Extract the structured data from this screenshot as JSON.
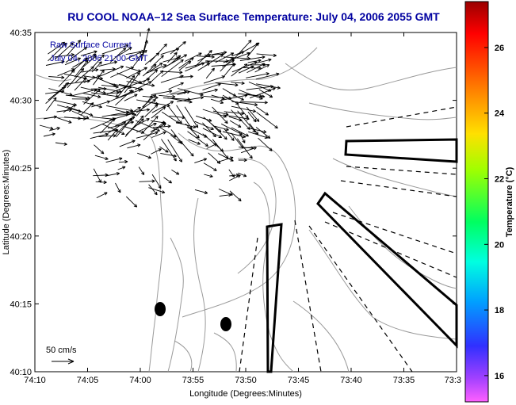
{
  "chart_data": {
    "type": "quiver-map",
    "title": "RU COOL   NOAA–12  Sea Surface Temperature:  July 04, 2006 2055 GMT",
    "xlabel": "Longitude (Degrees:Minutes)",
    "ylabel": "Latitude (Degrees:Minutes)",
    "xlim_minutes_west": [
      4450,
      4413
    ],
    "ylim_minutes_north": [
      2410,
      2435
    ],
    "x_ticks": [
      "74:10",
      "74:05",
      "74:00",
      "73:55",
      "73:50",
      "73:45",
      "73:40",
      "73:35",
      "73:3"
    ],
    "y_ticks": [
      "40:35",
      "40:30",
      "40:25",
      "40:20",
      "40:15",
      "40:10"
    ],
    "annotations": [
      "Raw Surface Current",
      "July 04, 2006 21:00 GMT"
    ],
    "scale_label": "50 cm/s",
    "colorbar": {
      "label": "Temperature (°C)",
      "ticks": [
        "26",
        "24",
        "22",
        "20",
        "18",
        "16"
      ],
      "range": [
        15.2,
        27.4
      ]
    },
    "markers": [
      {
        "name": "marker-1",
        "lon": "73:59",
        "lat": "40:14.7"
      },
      {
        "name": "marker-2",
        "lon": "73:52.3",
        "lat": "40:13.5"
      }
    ],
    "colors": {
      "title": "#0000a0",
      "annotation": "#0000a0",
      "contour": "#9a9a9a",
      "vector": "#000000"
    }
  }
}
